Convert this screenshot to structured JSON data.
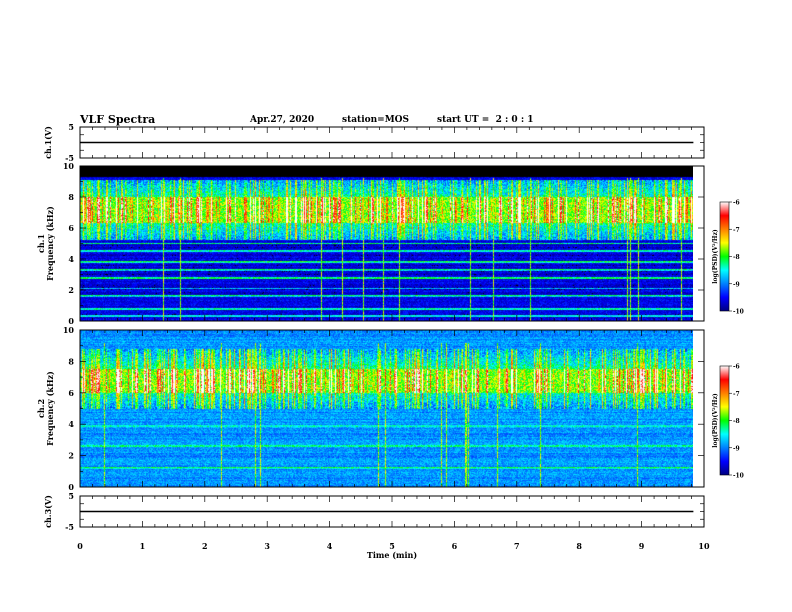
{
  "header": {
    "title": "VLF Spectra",
    "date": "Apr.27, 2020",
    "station": "station=MOS",
    "start": "start UT =  2 : 0 : 1"
  },
  "chart_data": [
    {
      "type": "line",
      "name": "ch1-voltage",
      "ylabel": "ch.1(V)",
      "ylim": [
        -5,
        5
      ],
      "yticks": [
        "5",
        "-5"
      ],
      "x": [
        0,
        9.83
      ],
      "y": [
        0,
        0
      ]
    },
    {
      "type": "heatmap",
      "name": "ch1-spectrogram",
      "ylabel": [
        "ch.1",
        "Frequency (kHz)"
      ],
      "ylim": [
        0,
        10
      ],
      "yticks": [
        "0",
        "2",
        "4",
        "6",
        "8",
        "10"
      ],
      "x_data_extent": [
        0,
        9.83
      ],
      "colorbar": {
        "label": "log(PSD)(V²/Hz)",
        "range": [
          -10,
          -6
        ],
        "ticks": [
          "-6",
          "-7",
          "-8",
          "-9",
          "-10"
        ]
      },
      "spectrum_hint": {
        "background": -10,
        "noise_band_khz": [
          5.2,
          9.1
        ],
        "peak_band_khz": [
          6.3,
          8.0
        ],
        "narrow_lines_khz": [
          0.3,
          0.8,
          1.6,
          2.1,
          2.8,
          3.3,
          3.8,
          4.5,
          5.0
        ]
      }
    },
    {
      "type": "heatmap",
      "name": "ch2-spectrogram",
      "ylabel": [
        "ch.2",
        "Frequency (kHz)"
      ],
      "ylim": [
        0,
        10
      ],
      "yticks": [
        "0",
        "2",
        "4",
        "6",
        "8",
        "10"
      ],
      "x_data_extent": [
        0,
        9.83
      ],
      "colorbar": {
        "label": "log(PSD)(V²/Hz)",
        "range": [
          -10,
          -6
        ],
        "ticks": [
          "-6",
          "-7",
          "-8",
          "-9",
          "-10"
        ]
      },
      "spectrum_hint": {
        "background": -9.3,
        "noise_band_khz": [
          5.0,
          8.8
        ],
        "peak_band_khz": [
          6.0,
          7.5
        ],
        "narrow_lines_khz": [
          1.2,
          2.6,
          3.9
        ]
      }
    },
    {
      "type": "line",
      "name": "ch3-voltage",
      "ylabel": "ch.3(V)",
      "ylim": [
        -5,
        5
      ],
      "yticks": [
        "5",
        "-5"
      ],
      "x": [
        0,
        9.83
      ],
      "y": [
        0,
        0
      ]
    }
  ],
  "xaxis": {
    "label": "Time (min)",
    "range": [
      0,
      10
    ],
    "ticks": [
      "0",
      "1",
      "2",
      "3",
      "4",
      "5",
      "6",
      "7",
      "8",
      "9",
      "10"
    ]
  },
  "colors": {
    "colormap": [
      "#000080",
      "#0000ff",
      "#0080ff",
      "#00ffff",
      "#00ff00",
      "#ffff00",
      "#ff8000",
      "#ff0000",
      "#ffffff"
    ]
  }
}
